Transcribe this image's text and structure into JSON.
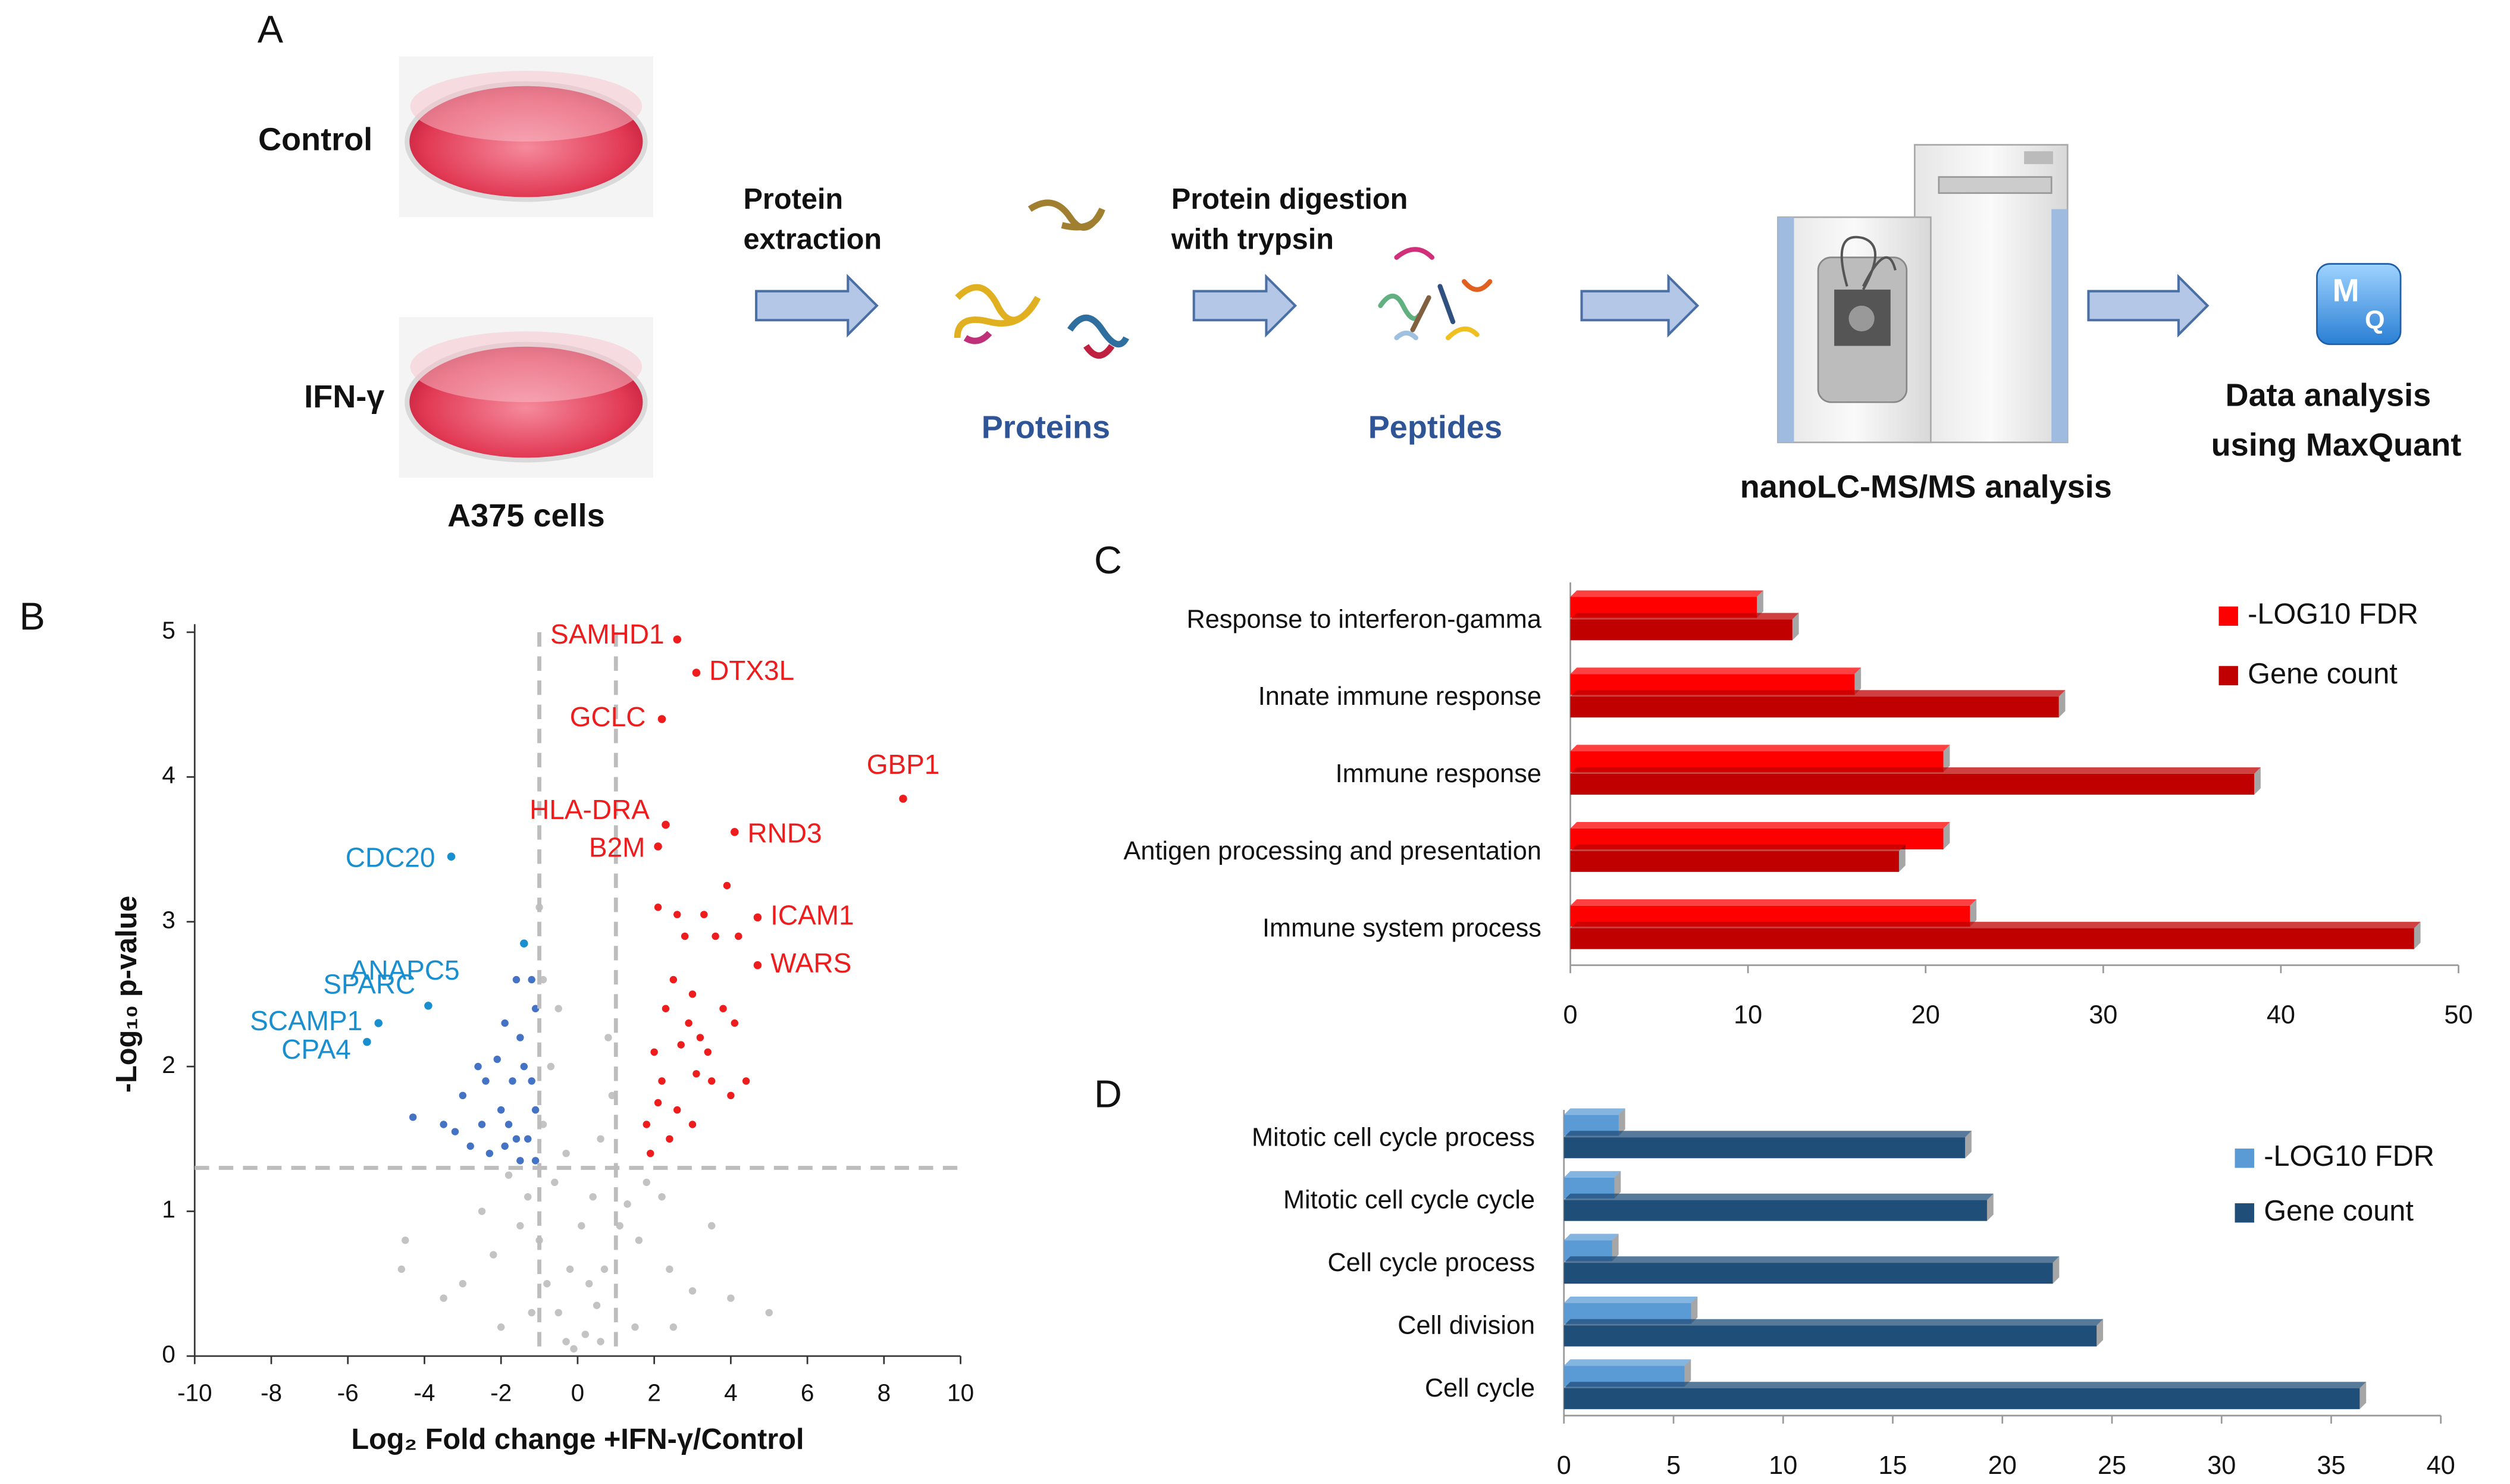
{
  "panel_a": {
    "label": "A",
    "control": "Control",
    "ifn": "IFN-γ",
    "cells": "A375 cells",
    "step1": [
      "Protein",
      "extraction"
    ],
    "proteins": "Proteins",
    "step2": [
      "Protein digestion",
      "with trypsin"
    ],
    "peptides": "Peptides",
    "instrument": "nanoLC-MS/MS analysis",
    "analysis": [
      "Data analysis",
      "using MaxQuant"
    ],
    "icon": [
      "M",
      "Q"
    ]
  },
  "chart_data": [
    {
      "type": "scatter",
      "panel": "B",
      "xlabel": "Log₂ Fold change +IFN-γ/Control",
      "ylabel": "-Log₁₀ p-value",
      "xlim": [
        -10,
        10
      ],
      "ylim": [
        0,
        5
      ],
      "xticks": [
        -10,
        -8,
        -6,
        -4,
        -2,
        0,
        2,
        4,
        6,
        8,
        10
      ],
      "yticks": [
        0,
        1,
        2,
        3,
        4,
        5
      ],
      "thresholds": {
        "x": [
          -1,
          1
        ],
        "y": [
          1.3
        ]
      },
      "series": [
        {
          "color": "#c3c3c3",
          "x": [
            -0.3,
            0.2,
            -0.5,
            0.5,
            -0.8,
            0.7,
            -1,
            1.1,
            -1.3,
            1.3,
            -0.6,
            0.4,
            -0.2,
            0.1,
            -1.5,
            1.6,
            -2.2,
            2.4,
            -3,
            3,
            -4.5,
            4,
            -4.6,
            5,
            -1.8,
            1.8,
            -0.9,
            -0.7,
            -0.5,
            0.8,
            -0.9,
            -1,
            0.6,
            -2.5,
            2.2,
            -3.5,
            3.5,
            0.9,
            -0.3,
            0.3,
            -1.2,
            1.5,
            -2,
            2.5,
            -0.1,
            0.6
          ],
          "values": [
            0.1,
            0.15,
            0.3,
            0.35,
            0.5,
            0.6,
            0.8,
            0.9,
            1.1,
            1.05,
            1.2,
            1.1,
            0.6,
            0.9,
            0.9,
            0.8,
            0.7,
            0.6,
            0.5,
            0.45,
            0.8,
            0.4,
            0.6,
            0.3,
            1.25,
            1.2,
            1.6,
            2,
            2.4,
            2.2,
            2.6,
            3.1,
            1.5,
            1,
            1.1,
            0.4,
            0.9,
            1.8,
            1.4,
            0.5,
            0.3,
            0.2,
            0.2,
            0.2,
            0.05,
            0.1
          ]
        },
        {
          "color": "#ee1c1c",
          "x": [
            2,
            2.3,
            2.5,
            2.8,
            3,
            3.2,
            2.1,
            2.6,
            3.3,
            3.6,
            3.9,
            4.2,
            2.2,
            2.6,
            3,
            3.5,
            4,
            4.4,
            2.4,
            1.9,
            2.1,
            3.4,
            3.8,
            4.1,
            2.7,
            1.8,
            3.1,
            2.9
          ],
          "values": [
            2.1,
            2.4,
            2.6,
            2.9,
            2.5,
            2.2,
            3.1,
            3.05,
            3.05,
            2.9,
            3.25,
            2.9,
            1.9,
            1.7,
            1.6,
            1.9,
            1.8,
            1.9,
            1.5,
            1.4,
            1.75,
            2.1,
            2.4,
            2.3,
            2.15,
            1.6,
            1.95,
            2.3
          ]
        },
        {
          "color": "#4472c4",
          "x": [
            -1.2,
            -1.6,
            -1.1,
            -1.9,
            -1.5,
            -2.6,
            -3,
            -2.5,
            -2,
            -1.7,
            -1.3,
            -1.1,
            -2.3,
            -1.9,
            -1.5,
            -3.2,
            -2.8,
            -4.3,
            -3.5,
            -1.4,
            -2.1,
            -1.2,
            -1.8,
            -2.4,
            -1.6,
            -1.1
          ],
          "values": [
            2.6,
            2.6,
            2.4,
            2.3,
            2.2,
            2,
            1.8,
            1.6,
            1.7,
            1.9,
            1.5,
            1.7,
            1.4,
            1.45,
            1.35,
            1.55,
            1.45,
            1.65,
            1.6,
            2,
            2.05,
            1.9,
            1.6,
            1.9,
            1.5,
            1.35
          ]
        }
      ],
      "annotations": [
        {
          "text": "SAMHD1",
          "x": 2.6,
          "y": 4.95,
          "color": "#ee1c1c"
        },
        {
          "text": "DTX3L",
          "x": 3.1,
          "y": 4.72,
          "color": "#ee1c1c"
        },
        {
          "text": "GCLC",
          "x": 2.2,
          "y": 4.4,
          "color": "#ee1c1c"
        },
        {
          "text": "GBP1",
          "x": 8.5,
          "y": 3.85,
          "color": "#ee1c1c"
        },
        {
          "text": "HLA-DRA",
          "x": 2.3,
          "y": 3.67,
          "color": "#ee1c1c"
        },
        {
          "text": "RND3",
          "x": 4.1,
          "y": 3.62,
          "color": "#ee1c1c"
        },
        {
          "text": "B2M",
          "x": 2.1,
          "y": 3.52,
          "color": "#ee1c1c"
        },
        {
          "text": "ICAM1",
          "x": 4.7,
          "y": 3.03,
          "color": "#ee1c1c"
        },
        {
          "text": "WARS",
          "x": 4.7,
          "y": 2.7,
          "color": "#ee1c1c"
        },
        {
          "text": "CDC20",
          "x": -3.3,
          "y": 3.45,
          "color": "#1a8fcf"
        },
        {
          "text": "ANAPC5",
          "x": -1.4,
          "y": 2.85,
          "color": "#1a8fcf"
        },
        {
          "text": "SPARC",
          "x": -3.9,
          "y": 2.42,
          "color": "#1a8fcf"
        },
        {
          "text": "SCAMP1",
          "x": -5.2,
          "y": 2.3,
          "color": "#1a8fcf"
        },
        {
          "text": "CPA4",
          "x": -5.5,
          "y": 2.17,
          "color": "#1a8fcf"
        }
      ]
    },
    {
      "type": "bar",
      "panel": "C",
      "orientation": "horizontal",
      "categories": [
        "Response to interferon-gamma",
        "Innate immune response",
        "Immune response",
        "Antigen processing and presentation",
        "Immune system process"
      ],
      "series": [
        {
          "name": "-LOG10 FDR",
          "color": "#ff0000",
          "values": [
            10.5,
            16,
            21,
            21,
            22.5
          ]
        },
        {
          "name": "Gene count",
          "color": "#c00000",
          "values": [
            12.5,
            27.5,
            38.5,
            18.5,
            47.5
          ]
        }
      ],
      "xlim": [
        0,
        50
      ],
      "xticks": [
        0,
        10,
        20,
        30,
        40,
        50
      ],
      "legend": "upper right"
    },
    {
      "type": "bar",
      "panel": "D",
      "orientation": "horizontal",
      "categories": [
        "Mitotic cell cycle process",
        "Mitotic cell cycle cycle",
        "Cell cycle process",
        "Cell division",
        "Cell cycle"
      ],
      "series": [
        {
          "name": "-LOG10 FDR",
          "color": "#5b9bd5",
          "values": [
            2.5,
            2.3,
            2.2,
            5.8,
            5.5
          ]
        },
        {
          "name": "Gene count",
          "color": "#1f4e79",
          "values": [
            18.3,
            19.3,
            22.3,
            24.3,
            36.3
          ]
        }
      ],
      "xlim": [
        0,
        40
      ],
      "xticks": [
        0,
        5,
        10,
        15,
        20,
        25,
        30,
        35,
        40
      ],
      "legend": "upper right"
    }
  ]
}
